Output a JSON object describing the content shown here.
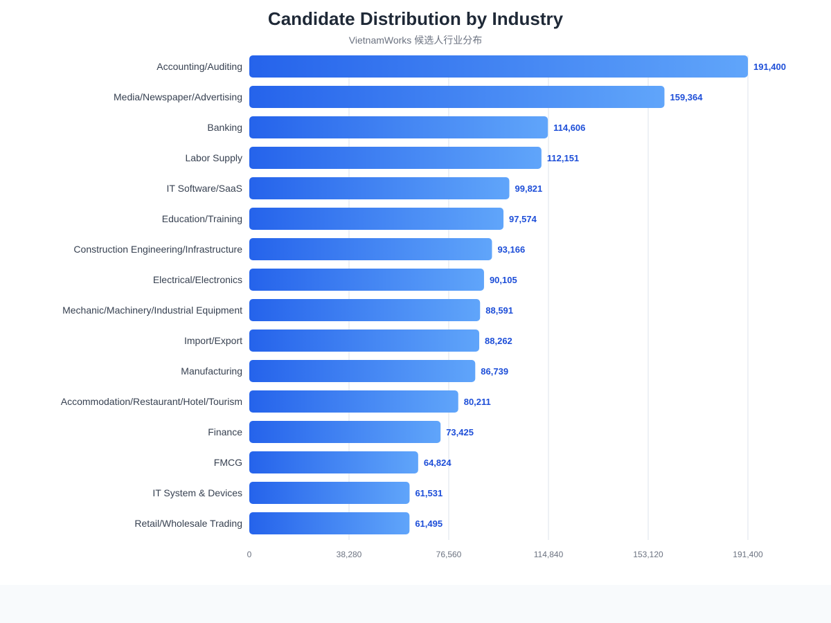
{
  "chart_data": {
    "type": "bar",
    "orientation": "horizontal",
    "title": "Candidate Distribution by Industry",
    "subtitle": "VietnamWorks 候选人行业分布",
    "categories": [
      "Accounting/Auditing",
      "Media/Newspaper/Advertising",
      "Banking",
      "Labor Supply",
      "IT Software/SaaS",
      "Education/Training",
      "Construction Engineering/Infrastructure",
      "Electrical/Electronics",
      "Mechanic/Machinery/Industrial Equipment",
      "Import/Export",
      "Manufacturing",
      "Accommodation/Restaurant/Hotel/Tourism",
      "Finance",
      "FMCG",
      "IT System & Devices",
      "Retail/Wholesale Trading"
    ],
    "values": [
      191400,
      159364,
      114606,
      112151,
      99821,
      97574,
      93166,
      90105,
      88591,
      88262,
      86739,
      80211,
      73425,
      64824,
      61531,
      61495
    ],
    "value_labels": [
      "191,400",
      "159,364",
      "114,606",
      "112,151",
      "99,821",
      "97,574",
      "93,166",
      "90,105",
      "88,591",
      "88,262",
      "86,739",
      "80,211",
      "73,425",
      "64,824",
      "61,531",
      "61,495"
    ],
    "xlim": [
      0,
      191400
    ],
    "x_ticks": [
      0,
      38280,
      76560,
      114840,
      153120,
      191400
    ],
    "x_tick_labels": [
      "0",
      "38,280",
      "76,560",
      "114,840",
      "153,120",
      "191,400"
    ],
    "grid": true,
    "legend": "none",
    "colors": {
      "bar_start": "#2563eb",
      "bar_end": "#60a5fa",
      "value_label": "#1d4ed8",
      "category_label": "#374151",
      "tick_label": "#6b7280",
      "grid": "#eef1f5",
      "title": "#1f2937",
      "subtitle": "#6b7280"
    }
  }
}
